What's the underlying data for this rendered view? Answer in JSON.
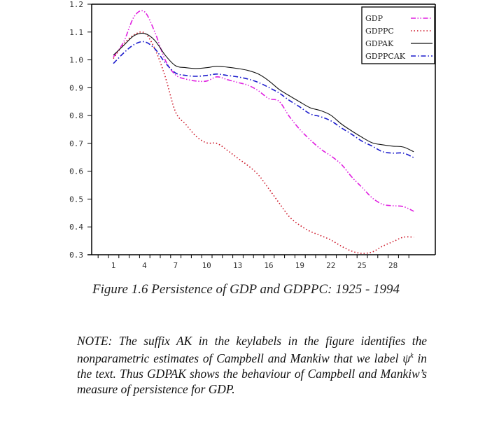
{
  "chart_data": {
    "type": "line",
    "title": "",
    "xlabel": "",
    "ylabel": "",
    "xlim": [
      -0.6,
      32.7
    ],
    "ylim": [
      0.3,
      1.2
    ],
    "x_ticks": [
      1,
      4,
      7,
      10,
      13,
      16,
      19,
      22,
      25,
      28
    ],
    "x_minor_ticks": [
      0,
      1,
      2,
      3,
      4,
      5,
      6,
      7,
      8,
      9,
      10,
      11,
      12,
      13,
      14,
      15,
      16,
      17,
      18,
      19,
      20,
      21,
      22,
      23,
      24,
      25,
      26,
      27,
      28,
      29,
      30
    ],
    "y_ticks": [
      "0.3",
      "0.4",
      "0.5",
      "0.6",
      "0.7",
      "0.8",
      "0.9",
      "1.0",
      "1.1",
      "1.2"
    ],
    "grid": false,
    "legend_position": "top-right",
    "x": [
      1,
      2,
      3,
      4,
      5,
      6,
      7,
      8,
      9,
      10,
      11,
      12,
      13,
      14,
      15,
      16,
      17,
      18,
      19,
      20,
      21,
      22,
      23,
      24,
      25,
      26,
      27,
      28,
      29,
      30
    ],
    "series": [
      {
        "name": "GDP",
        "color": "#e020e0",
        "style": "dash-dot-dot",
        "values": [
          1.01,
          1.065,
          1.155,
          1.173,
          1.1,
          1.0,
          0.946,
          0.931,
          0.924,
          0.924,
          0.939,
          0.929,
          0.919,
          0.909,
          0.889,
          0.861,
          0.851,
          0.796,
          0.75,
          0.713,
          0.68,
          0.655,
          0.625,
          0.58,
          0.542,
          0.504,
          0.481,
          0.476,
          0.473,
          0.456
        ]
      },
      {
        "name": "GDPPC",
        "color": "#cc1122",
        "style": "dotted",
        "values": [
          1.005,
          1.057,
          1.09,
          1.097,
          1.04,
          0.94,
          0.813,
          0.768,
          0.725,
          0.702,
          0.7,
          0.675,
          0.647,
          0.62,
          0.587,
          0.537,
          0.486,
          0.436,
          0.406,
          0.384,
          0.369,
          0.353,
          0.331,
          0.313,
          0.305,
          0.31,
          0.331,
          0.347,
          0.363,
          0.363
        ]
      },
      {
        "name": "GDPAK",
        "color": "#111111",
        "style": "solid",
        "values": [
          1.017,
          1.052,
          1.087,
          1.095,
          1.07,
          1.017,
          0.979,
          0.972,
          0.969,
          0.972,
          0.977,
          0.974,
          0.969,
          0.962,
          0.949,
          0.925,
          0.894,
          0.871,
          0.849,
          0.828,
          0.818,
          0.801,
          0.77,
          0.745,
          0.722,
          0.702,
          0.695,
          0.69,
          0.687,
          0.67
        ]
      },
      {
        "name": "GDPPCAK",
        "color": "#1a1acc",
        "style": "dash-dot",
        "values": [
          0.987,
          1.025,
          1.055,
          1.065,
          1.04,
          0.99,
          0.953,
          0.944,
          0.941,
          0.944,
          0.949,
          0.944,
          0.939,
          0.931,
          0.919,
          0.901,
          0.881,
          0.854,
          0.831,
          0.806,
          0.796,
          0.781,
          0.756,
          0.733,
          0.708,
          0.69,
          0.67,
          0.665,
          0.665,
          0.649
        ]
      }
    ]
  },
  "caption": "Figure 1.6  Persistence of GDP and GDPPC: 1925 - 1994",
  "note": {
    "prefix": "NOTE: The suffix AK in the keylabels in the figure identifies the nonparametric estimates of Campbell and Mankiw that we label ",
    "symbol": "ψ",
    "superscript": "k",
    "suffix": " in the text. Thus GDPAK shows the behaviour of Campbell and Mankiw’s measure of persistence for GDP."
  }
}
